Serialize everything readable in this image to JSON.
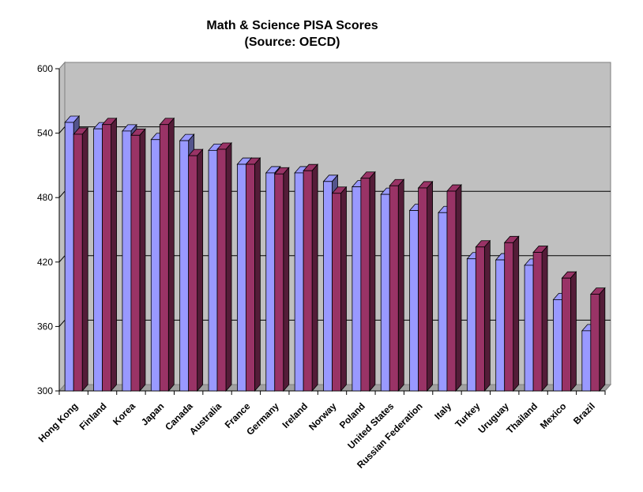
{
  "chart_data": {
    "type": "bar",
    "title": "Math & Science PISA Scores",
    "subtitle": "(Source: OECD)",
    "xlabel": "",
    "ylabel": "",
    "ylim": [
      300,
      600
    ],
    "yticks": [
      300,
      360,
      420,
      480,
      540,
      600
    ],
    "grid": true,
    "legend": "none",
    "categories": [
      "Hong Kong",
      "Finland",
      "Korea",
      "Japan",
      "Canada",
      "Australia",
      "France",
      "Germany",
      "Ireland",
      "Norway",
      "Poland",
      "United States",
      "Russian Federation",
      "Italy",
      "Turkey",
      "Uruguay",
      "Thailand",
      "Mexico",
      "Brazil"
    ],
    "series": [
      {
        "color": "#9999ff",
        "values": [
          550,
          544,
          542,
          534,
          533,
          524,
          511,
          503,
          503,
          495,
          490,
          483,
          468,
          466,
          423,
          422,
          417,
          385,
          356
        ]
      },
      {
        "color": "#993366",
        "values": [
          539,
          548,
          538,
          548,
          519,
          525,
          511,
          502,
          505,
          484,
          498,
          491,
          489,
          486,
          434,
          438,
          429,
          405,
          390
        ]
      }
    ]
  }
}
